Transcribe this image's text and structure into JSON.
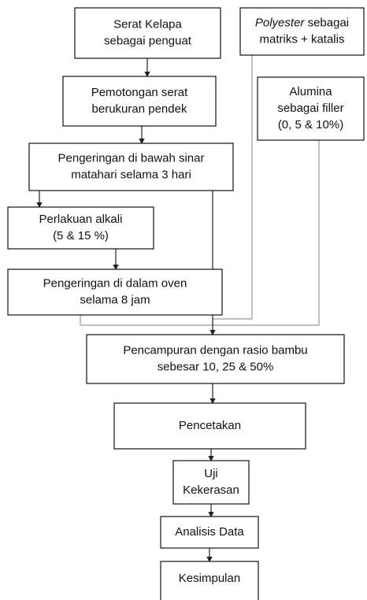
{
  "nodes": [
    {
      "lines": [
        "Serat Kelapa",
        "sebagai penguat"
      ]
    },
    {
      "italic": "Polyester",
      "rest": " sebagai",
      "lines": [
        "matriks + katalis"
      ]
    },
    {
      "lines": [
        "Pemotongan serat",
        "berukuran pendek"
      ]
    },
    {
      "lines": [
        "Alumina",
        "sebagai filler",
        "(0, 5 & 10%)"
      ]
    },
    {
      "lines": [
        "Pengeringan di bawah sinar",
        "matahari selama 3 hari"
      ]
    },
    {
      "lines": [
        "Perlakuan alkali",
        "(5 & 15 %)"
      ]
    },
    {
      "lines": [
        "Pengeringan di dalam oven",
        "selama 8 jam"
      ]
    },
    {
      "lines": [
        "Pencampuran dengan rasio bambu",
        "sebesar 10, 25 & 50%"
      ]
    },
    {
      "lines": [
        "Pencetakan"
      ]
    },
    {
      "lines": [
        "Uji",
        "Kekerasan"
      ]
    },
    {
      "lines": [
        "Analisis Data"
      ]
    },
    {
      "lines": [
        "Kesimpulan"
      ]
    }
  ]
}
